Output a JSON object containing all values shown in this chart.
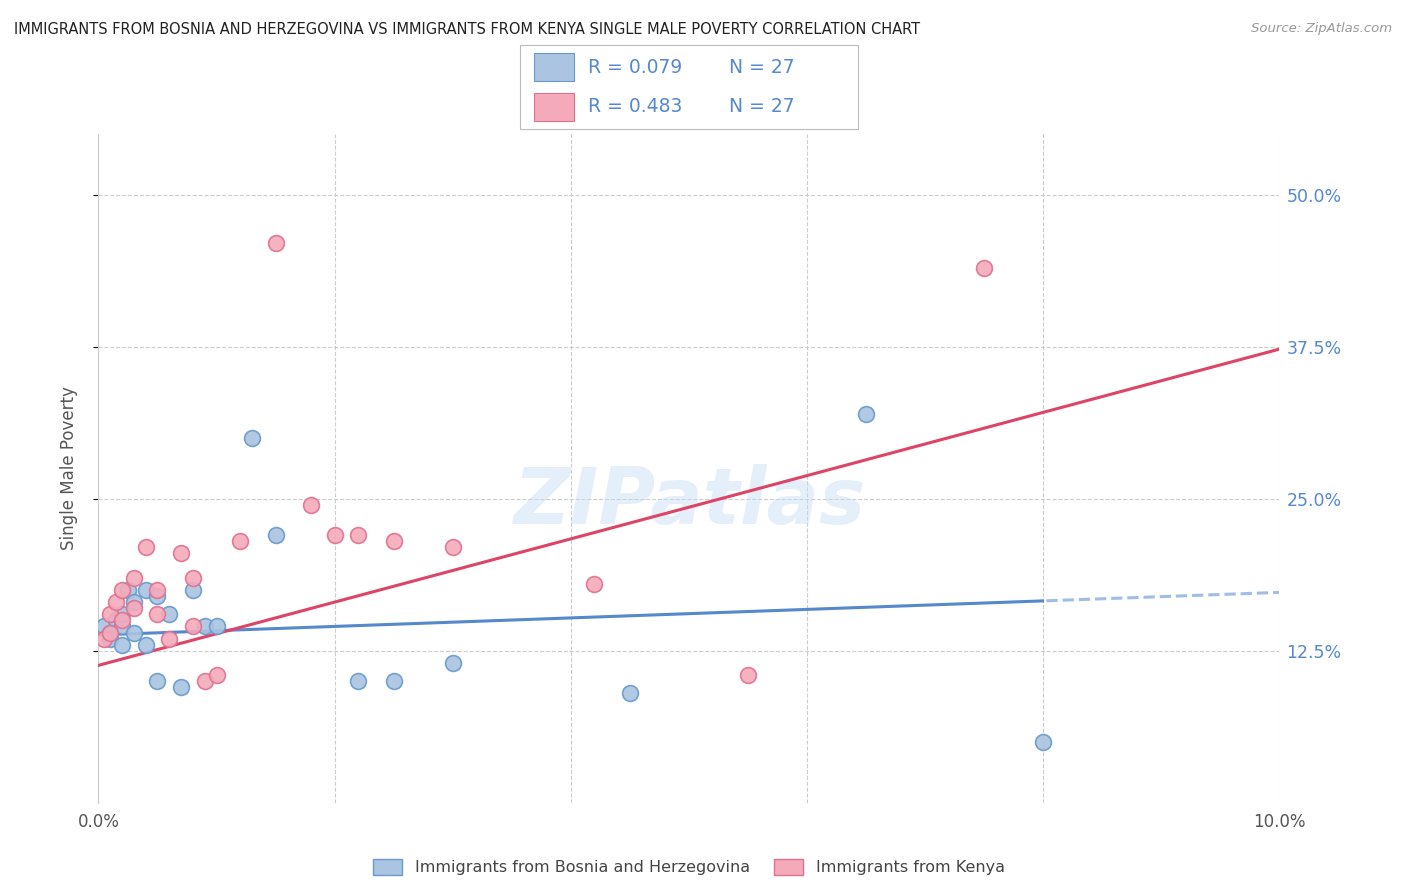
{
  "title": "IMMIGRANTS FROM BOSNIA AND HERZEGOVINA VS IMMIGRANTS FROM KENYA SINGLE MALE POVERTY CORRELATION CHART",
  "source": "Source: ZipAtlas.com",
  "ylabel": "Single Male Poverty",
  "xlim": [
    0.0,
    0.1
  ],
  "ylim": [
    0.0,
    0.55
  ],
  "yticks": [
    0.125,
    0.25,
    0.375,
    0.5
  ],
  "ytick_labels": [
    "12.5%",
    "25.0%",
    "37.5%",
    "50.0%"
  ],
  "color_bosnia": "#aac4e2",
  "color_kenya": "#f4aabb",
  "color_bosnia_edge": "#6699cc",
  "color_kenya_edge": "#e07090",
  "color_bosnia_line": "#5588cc",
  "color_kenya_line": "#dd4466",
  "color_axis_text": "#5588cc",
  "watermark_text": "ZIPatlas",
  "legend_box_color": "#dddddd",
  "bosnia_x": [
    0.0005,
    0.001,
    0.001,
    0.0015,
    0.002,
    0.002,
    0.002,
    0.0025,
    0.003,
    0.003,
    0.004,
    0.004,
    0.005,
    0.005,
    0.006,
    0.007,
    0.008,
    0.009,
    0.01,
    0.013,
    0.015,
    0.022,
    0.025,
    0.03,
    0.045,
    0.065,
    0.08
  ],
  "bosnia_y": [
    0.145,
    0.14,
    0.135,
    0.15,
    0.145,
    0.13,
    0.155,
    0.175,
    0.14,
    0.165,
    0.175,
    0.13,
    0.17,
    0.1,
    0.155,
    0.095,
    0.175,
    0.145,
    0.145,
    0.3,
    0.22,
    0.1,
    0.1,
    0.115,
    0.09,
    0.32,
    0.05
  ],
  "kenya_x": [
    0.0005,
    0.001,
    0.001,
    0.0015,
    0.002,
    0.002,
    0.003,
    0.003,
    0.004,
    0.005,
    0.005,
    0.006,
    0.007,
    0.008,
    0.008,
    0.009,
    0.01,
    0.012,
    0.015,
    0.018,
    0.02,
    0.022,
    0.025,
    0.03,
    0.042,
    0.055,
    0.075
  ],
  "kenya_y": [
    0.135,
    0.14,
    0.155,
    0.165,
    0.15,
    0.175,
    0.16,
    0.185,
    0.21,
    0.155,
    0.175,
    0.135,
    0.205,
    0.145,
    0.185,
    0.1,
    0.105,
    0.215,
    0.46,
    0.245,
    0.22,
    0.22,
    0.215,
    0.21,
    0.18,
    0.105,
    0.44
  ]
}
